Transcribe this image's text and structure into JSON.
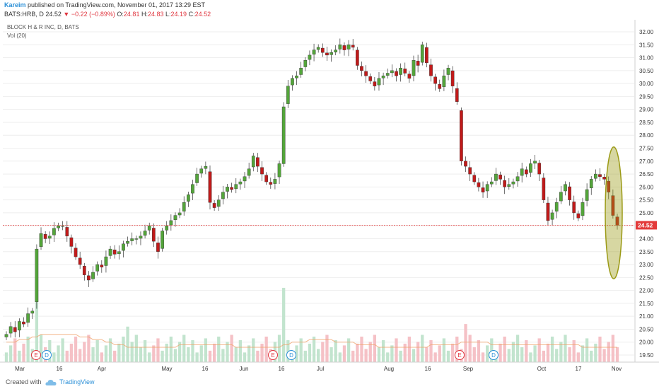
{
  "header": {
    "author": "Kareim",
    "published": "published on TradingView.com, November 01, 2017 13:29 EST",
    "symbol": "BATS:HRB, D",
    "last": "24.52",
    "change": "−0.22 (−0.89%)",
    "o_label": "O:",
    "o_value": "24.81",
    "h_label": "H:",
    "h_value": "24.83",
    "l_label": "L:",
    "l_value": "24.19",
    "c_label": "C:",
    "c_value": "24.52"
  },
  "legend": {
    "title": "BLOCK H & R INC, D, BATS",
    "volume": "Vol (20)"
  },
  "footer": {
    "created": "Created with",
    "brand": "TradingView",
    "logo_icon": "tradingview-cloud-icon"
  },
  "colors": {
    "up": "#53a53a",
    "down": "#c11a1a",
    "vol_up": "#c2e4ce",
    "vol_down": "#f5c1c6",
    "price_line": "#e33a3a",
    "ellipse": "#9b9a16"
  },
  "chart_data": {
    "type": "candlestick",
    "price_axis": {
      "min": 19.25,
      "max": 32.0,
      "ticks": [
        "19.50",
        "20.00",
        "20.50",
        "21.00",
        "21.50",
        "22.00",
        "22.50",
        "23.00",
        "23.50",
        "24.00",
        "24.50",
        "25.00",
        "25.50",
        "26.00",
        "26.50",
        "27.00",
        "27.50",
        "28.00",
        "28.50",
        "29.00",
        "29.50",
        "30.00",
        "30.50",
        "31.00",
        "31.50",
        "32.00"
      ]
    },
    "time_axis": {
      "labels": [
        "Mar",
        "16",
        "Apr",
        "May",
        "16",
        "Jun",
        "16",
        "Jul",
        "Aug",
        "16",
        "Sep",
        "Oct",
        "17",
        "Nov"
      ]
    },
    "current_price": {
      "value": 24.52,
      "label": "24.52"
    },
    "events": [
      {
        "label": "E",
        "type": "earnings"
      },
      {
        "label": "D",
        "type": "dividend"
      },
      {
        "label": "E",
        "type": "earnings"
      },
      {
        "label": "D",
        "type": "dividend"
      },
      {
        "label": "E",
        "type": "earnings"
      },
      {
        "label": "D",
        "type": "dividend"
      }
    ],
    "closes": [
      20.3,
      20.6,
      20.4,
      20.8,
      20.7,
      21.1,
      21.2,
      23.6,
      24.2,
      24.0,
      24.1,
      24.4,
      24.5,
      24.5,
      24.1,
      23.7,
      23.3,
      23.0,
      22.6,
      22.4,
      22.7,
      23.0,
      22.9,
      23.3,
      23.6,
      23.4,
      23.5,
      23.8,
      23.9,
      24.0,
      24.0,
      24.1,
      24.3,
      24.5,
      23.9,
      23.5,
      24.3,
      24.5,
      24.7,
      24.9,
      25.0,
      25.4,
      25.7,
      26.1,
      26.5,
      26.7,
      26.8,
      25.4,
      25.2,
      25.5,
      25.8,
      26.0,
      25.9,
      26.1,
      26.2,
      26.4,
      26.7,
      27.2,
      26.8,
      26.5,
      26.2,
      26.1,
      26.3,
      26.9,
      29.1,
      29.9,
      30.2,
      30.3,
      30.6,
      30.9,
      31.1,
      31.3,
      31.4,
      31.2,
      31.1,
      31.2,
      31.3,
      31.5,
      31.3,
      31.5,
      31.4,
      30.7,
      30.5,
      30.3,
      30.1,
      29.9,
      30.2,
      30.3,
      30.4,
      30.5,
      30.3,
      30.6,
      30.4,
      30.2,
      30.9,
      30.7,
      31.5,
      30.8,
      30.3,
      30.0,
      29.8,
      30.3,
      30.6,
      29.9,
      29.3,
      27.0,
      26.8,
      26.5,
      26.2,
      26.0,
      25.8,
      26.1,
      26.2,
      26.5,
      26.3,
      26.0,
      26.1,
      26.2,
      26.4,
      26.7,
      26.5,
      26.9,
      27.0,
      26.5,
      25.5,
      24.7,
      25.0,
      25.4,
      25.8,
      26.1,
      25.5,
      25.0,
      24.8,
      25.4,
      25.9,
      26.3,
      26.5,
      26.4,
      26.3,
      25.8,
      24.9,
      24.52
    ],
    "volume_ma": [
      20.0,
      20.0,
      20.0,
      20.1,
      20.1,
      20.1,
      20.2,
      20.2,
      20.3,
      20.3,
      20.3,
      20.3,
      20.3,
      20.3,
      20.3,
      20.3,
      20.3,
      20.2,
      20.2,
      20.2,
      20.1,
      20.1,
      20.1,
      20.0,
      20.0,
      19.9,
      19.9,
      19.9,
      19.8,
      19.8,
      19.8,
      19.8,
      19.8,
      19.8,
      19.8,
      19.8,
      19.8,
      19.8,
      19.8,
      19.8,
      19.9,
      19.9,
      19.9,
      19.9,
      19.9,
      19.9,
      19.9,
      19.9,
      19.9,
      19.9,
      19.9,
      19.9,
      19.9,
      19.8,
      19.8,
      19.8,
      19.8,
      19.8,
      19.8,
      19.8,
      19.8,
      19.8,
      19.8,
      19.8,
      19.9,
      19.9,
      20.0,
      20.0,
      20.0,
      20.0,
      20.1,
      20.1,
      20.1,
      20.1,
      20.1,
      20.1,
      20.0,
      20.0,
      20.0,
      20.0,
      20.0,
      19.9,
      19.9,
      19.9,
      19.9,
      19.9,
      19.8,
      19.8,
      19.8,
      19.8,
      19.8,
      19.8,
      19.8,
      19.8,
      19.8,
      19.8,
      19.8,
      19.8,
      19.9,
      19.9,
      19.9,
      19.9,
      19.9,
      19.9,
      19.9,
      20.0,
      20.0,
      20.0,
      20.0,
      20.0,
      20.0,
      20.0,
      19.9,
      19.9,
      19.9,
      19.9,
      19.9,
      19.9,
      19.9,
      19.9,
      19.9,
      19.9,
      19.9,
      19.9,
      19.9,
      19.9,
      19.9,
      19.9,
      19.9,
      19.9,
      19.9,
      19.9,
      19.9,
      19.8,
      19.8,
      19.8,
      19.8,
      19.8,
      19.8,
      19.8,
      19.8,
      19.8
    ]
  }
}
